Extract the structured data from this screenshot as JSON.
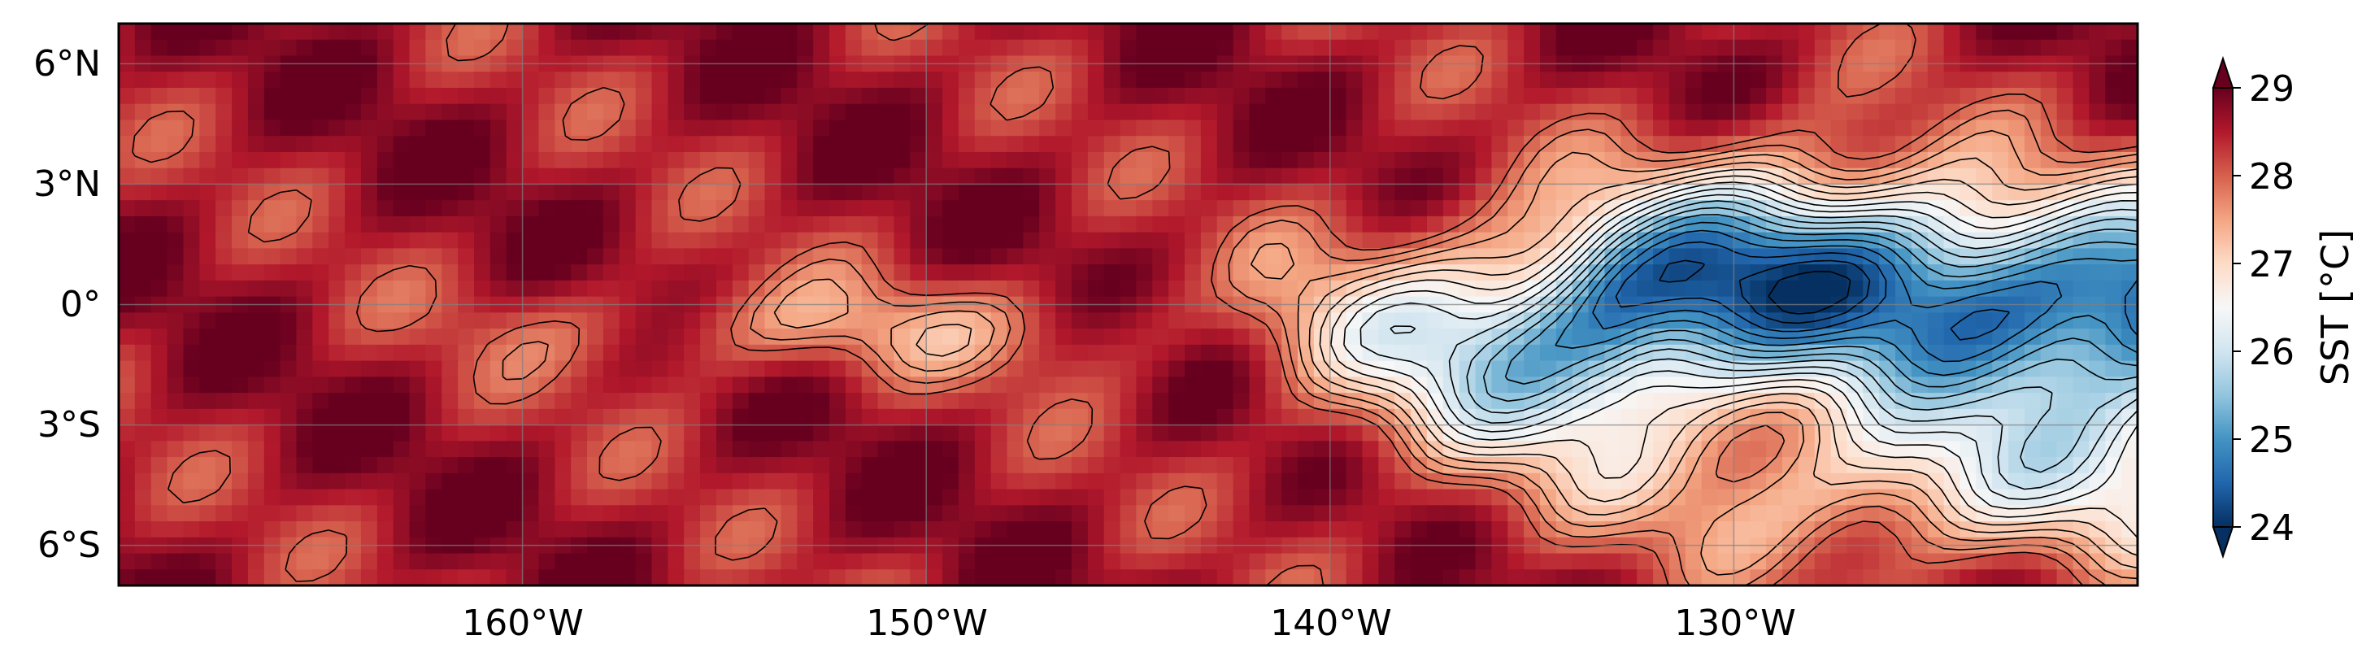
{
  "chart_data": {
    "type": "heatmap",
    "title": "",
    "field": "sea surface temperature",
    "x_ticks": [
      "160°W",
      "150°W",
      "140°W",
      "130°W"
    ],
    "x_tick_values": [
      -160,
      -150,
      -140,
      -130
    ],
    "y_ticks": [
      "6°N",
      "3°N",
      "0°",
      "3°S",
      "6°S"
    ],
    "y_tick_values": [
      6,
      3,
      0,
      -3,
      -6
    ],
    "xlim": [
      -170,
      -120
    ],
    "ylim": [
      -7,
      7
    ],
    "grid": true,
    "contours": true,
    "colorbar": {
      "label": "SST [°C]",
      "ticks": [
        "24",
        "25",
        "26",
        "27",
        "28",
        "29"
      ],
      "tick_values": [
        24,
        25,
        26,
        27,
        28,
        29
      ],
      "range": [
        24,
        29
      ],
      "extend": "both",
      "colormap": "RdBu_r",
      "colors": [
        "#053061",
        "#2166ac",
        "#4393c3",
        "#92c5de",
        "#d1e5f0",
        "#f7f7f7",
        "#fddbc7",
        "#f4a582",
        "#d6604d",
        "#b2182b",
        "#67001f"
      ]
    }
  }
}
